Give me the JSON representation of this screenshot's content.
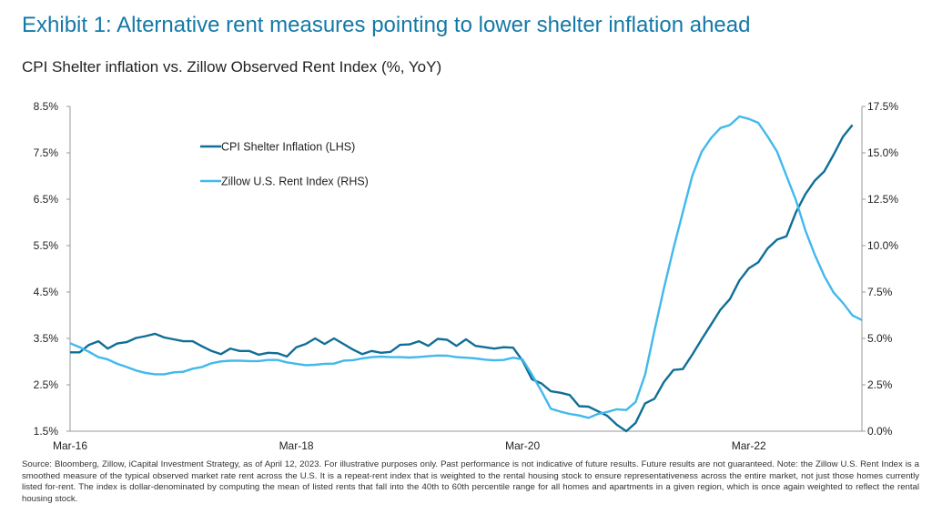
{
  "title": "Exhibit 1: Alternative rent measures pointing to lower shelter inflation ahead",
  "subtitle": "CPI Shelter inflation vs. Zillow Observed Rent Index (%, YoY)",
  "footnote": "Source: Bloomberg, Zillow, iCapital Investment Strategy, as of April 12, 2023. For illustrative purposes only. Past performance is not indicative of future results. Future results are not guaranteed. Note: the Zillow U.S. Rent Index is a smoothed measure of the typical observed market rate rent across the U.S. It is a repeat-rent index that is weighted to the rental housing stock to ensure representativeness across the entire market, not just those homes currently listed for-rent. The index is dollar-denominated by computing the mean of listed rents that fall into the 40th to 60th percentile range for all homes and apartments in a given region, which is once again weighted to reflect the rental housing stock.",
  "chart_data": {
    "type": "line",
    "title": "CPI Shelter inflation vs. Zillow Observed Rent Index (%, YoY)",
    "x": [
      "2016-03",
      "2016-04",
      "2016-05",
      "2016-06",
      "2016-07",
      "2016-08",
      "2016-09",
      "2016-10",
      "2016-11",
      "2016-12",
      "2017-01",
      "2017-02",
      "2017-03",
      "2017-04",
      "2017-05",
      "2017-06",
      "2017-07",
      "2017-08",
      "2017-09",
      "2017-10",
      "2017-11",
      "2017-12",
      "2018-01",
      "2018-02",
      "2018-03",
      "2018-04",
      "2018-05",
      "2018-06",
      "2018-07",
      "2018-08",
      "2018-09",
      "2018-10",
      "2018-11",
      "2018-12",
      "2019-01",
      "2019-02",
      "2019-03",
      "2019-04",
      "2019-05",
      "2019-06",
      "2019-07",
      "2019-08",
      "2019-09",
      "2019-10",
      "2019-11",
      "2019-12",
      "2020-01",
      "2020-02",
      "2020-03",
      "2020-04",
      "2020-05",
      "2020-06",
      "2020-07",
      "2020-08",
      "2020-09",
      "2020-10",
      "2020-11",
      "2020-12",
      "2021-01",
      "2021-02",
      "2021-03",
      "2021-04",
      "2021-05",
      "2021-06",
      "2021-07",
      "2021-08",
      "2021-09",
      "2021-10",
      "2021-11",
      "2021-12",
      "2022-01",
      "2022-02",
      "2022-03",
      "2022-04",
      "2022-05",
      "2022-06",
      "2022-07",
      "2022-08",
      "2022-09",
      "2022-10",
      "2022-11",
      "2022-12",
      "2023-01",
      "2023-02",
      "2023-03"
    ],
    "x_tick_labels": [
      "Mar-16",
      "Mar-18",
      "Mar-20",
      "Mar-22"
    ],
    "x_tick_values": [
      "2016-03",
      "2018-03",
      "2020-03",
      "2022-03"
    ],
    "y_left": {
      "range": [
        1.5,
        8.5
      ],
      "ticks": [
        "1.5%",
        "2.5%",
        "3.5%",
        "4.5%",
        "5.5%",
        "6.5%",
        "7.5%",
        "8.5%"
      ]
    },
    "y_right": {
      "range": [
        0,
        17.5
      ],
      "ticks": [
        "0.0%",
        "2.5%",
        "5.0%",
        "7.5%",
        "10.0%",
        "12.5%",
        "15.0%",
        "17.5%"
      ]
    },
    "grid": false,
    "legend_position": "top-left-inside",
    "series": [
      {
        "name": "CPI Shelter Inflation (LHS)",
        "axis": "left",
        "color": "#0f6f96",
        "values": [
          3.2,
          3.2,
          3.36,
          3.44,
          3.28,
          3.39,
          3.42,
          3.51,
          3.55,
          3.6,
          3.52,
          3.48,
          3.44,
          3.44,
          3.33,
          3.23,
          3.16,
          3.28,
          3.23,
          3.23,
          3.15,
          3.19,
          3.18,
          3.11,
          3.31,
          3.38,
          3.5,
          3.38,
          3.5,
          3.38,
          3.26,
          3.16,
          3.23,
          3.19,
          3.21,
          3.36,
          3.37,
          3.44,
          3.34,
          3.49,
          3.47,
          3.34,
          3.48,
          3.34,
          3.31,
          3.28,
          3.31,
          3.3,
          3.02,
          2.62,
          2.53,
          2.36,
          2.33,
          2.28,
          2.04,
          2.03,
          1.93,
          1.83,
          1.64,
          1.5,
          1.68,
          2.1,
          2.2,
          2.56,
          2.82,
          2.84,
          3.15,
          3.48,
          3.8,
          4.12,
          4.35,
          4.75,
          5.01,
          5.14,
          5.44,
          5.63,
          5.7,
          6.22,
          6.61,
          6.9,
          7.1,
          7.46,
          7.85,
          8.1,
          null
        ]
      },
      {
        "name": "Zillow U.S. Rent Index (RHS)",
        "axis": "right",
        "color": "#41b9ec",
        "values": [
          4.74,
          4.53,
          4.28,
          3.99,
          3.87,
          3.63,
          3.46,
          3.27,
          3.14,
          3.07,
          3.07,
          3.17,
          3.2,
          3.37,
          3.46,
          3.66,
          3.76,
          3.8,
          3.8,
          3.78,
          3.78,
          3.84,
          3.84,
          3.71,
          3.63,
          3.56,
          3.58,
          3.63,
          3.64,
          3.8,
          3.83,
          3.92,
          3.99,
          4.02,
          3.99,
          3.99,
          3.97,
          4.0,
          4.04,
          4.08,
          4.07,
          3.99,
          3.96,
          3.92,
          3.86,
          3.82,
          3.84,
          3.96,
          3.87,
          3.05,
          2.16,
          1.21,
          1.06,
          0.93,
          0.85,
          0.72,
          0.93,
          1.04,
          1.18,
          1.14,
          1.58,
          3.05,
          5.42,
          7.71,
          9.84,
          11.8,
          13.76,
          15.06,
          15.8,
          16.34,
          16.5,
          16.96,
          16.83,
          16.62,
          15.88,
          15.06,
          13.76,
          12.45,
          10.82,
          9.51,
          8.37,
          7.47,
          6.9,
          6.24,
          5.99
        ]
      }
    ]
  }
}
